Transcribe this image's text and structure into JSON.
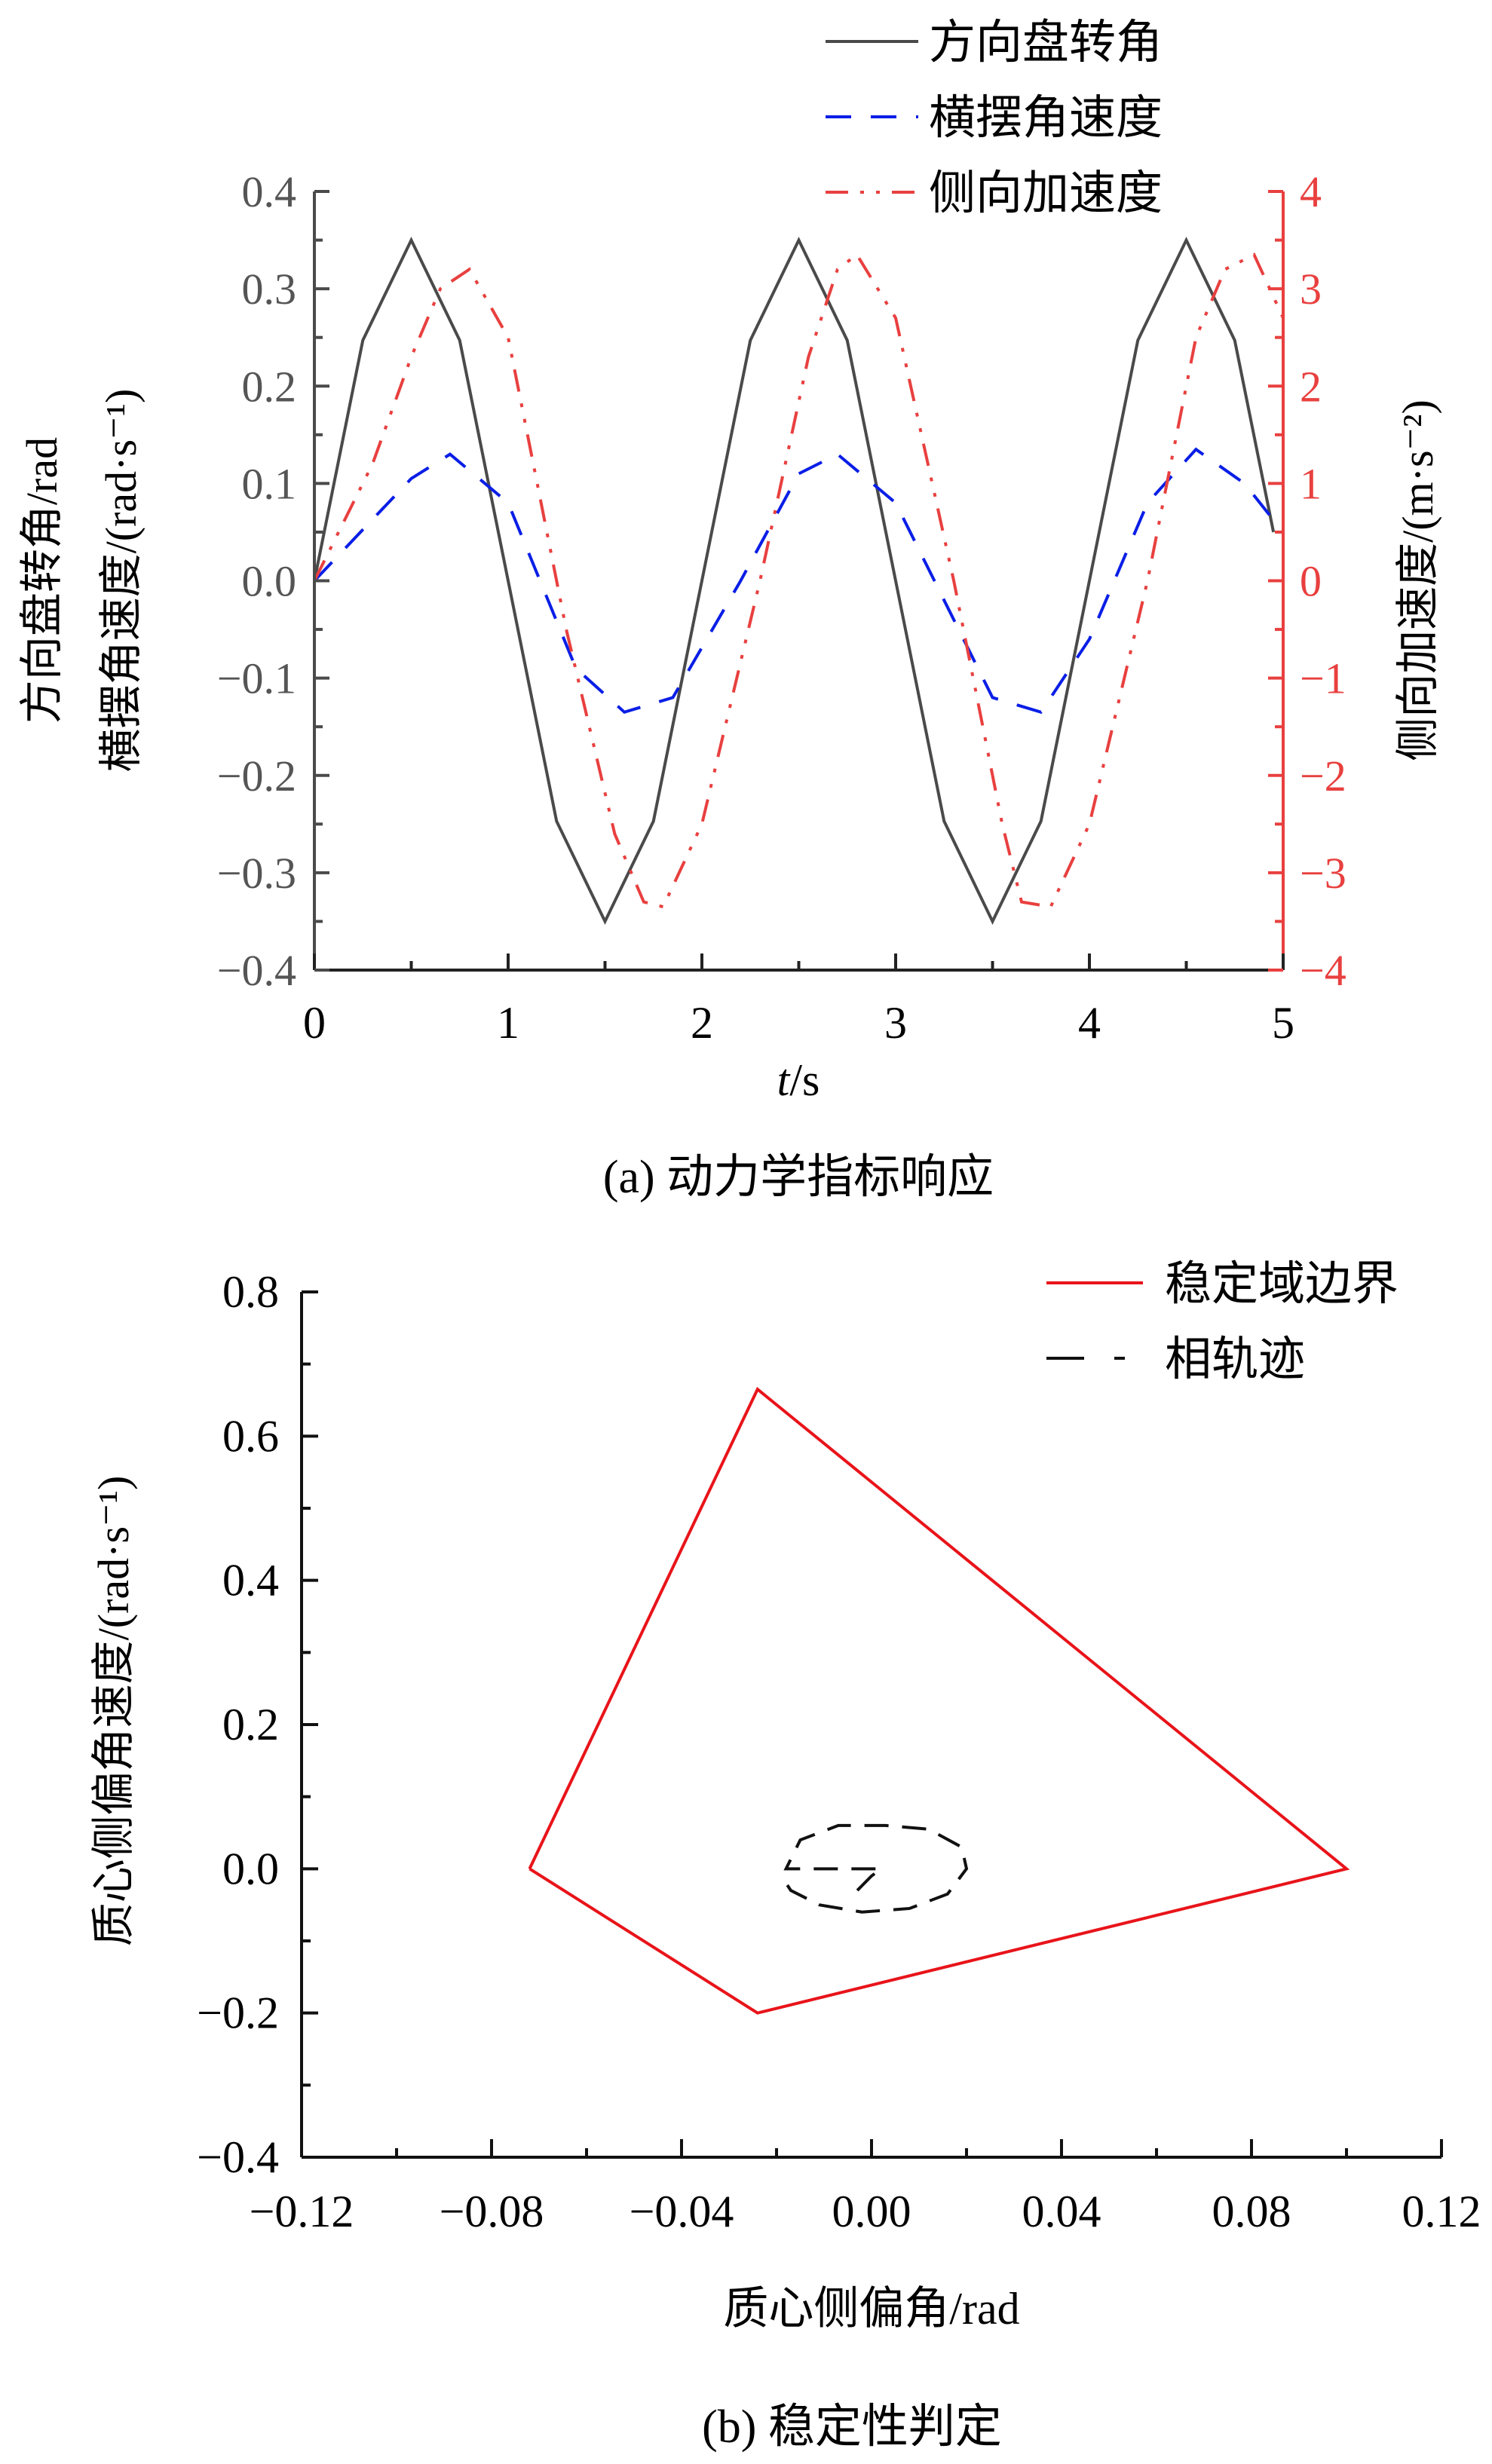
{
  "chart_data": [
    {
      "type": "line",
      "caption": "(a) 动力学指标响应",
      "xlabel_italic": "t",
      "xlabel_unit": "/s",
      "ylabel_left_line1": "方向盘转角/rad",
      "ylabel_left_line2": "横摆角速度/(rad·s⁻¹)",
      "ylabel_right": "侧向加速度/(m·s⁻²)",
      "xlim": [
        0,
        5
      ],
      "ylim_left": [
        -0.4,
        0.4
      ],
      "ylim_right": [
        -4,
        4
      ],
      "xticks": [
        "0",
        "1",
        "2",
        "3",
        "4",
        "5"
      ],
      "yticks_left": [
        "0.4",
        "0.3",
        "0.2",
        "0.1",
        "0.0",
        "−0.1",
        "−0.2",
        "−0.3",
        "−0.4"
      ],
      "yticks_right": [
        "4",
        "3",
        "2",
        "1",
        "0",
        "−1",
        "−2",
        "−3",
        "−4"
      ],
      "grid": false,
      "legend_position": "top-right",
      "colors": {
        "steering": "#4a4a4a",
        "yaw": "#0a1ee6",
        "lateral": "#e8403f"
      },
      "series": [
        {
          "name": "方向盘转角",
          "axis": "left",
          "style": "solid",
          "x": [
            0,
            0.25,
            0.5,
            0.75,
            1.0,
            1.25,
            1.5,
            1.75,
            2.0,
            2.25,
            2.5,
            2.75,
            3.0,
            3.25,
            3.5,
            3.75,
            4.0,
            4.25,
            4.5,
            4.75,
            4.95
          ],
          "y": [
            0,
            0.247,
            0.35,
            0.247,
            0,
            -0.247,
            -0.35,
            -0.247,
            0,
            0.247,
            0.35,
            0.247,
            0,
            -0.247,
            -0.35,
            -0.247,
            0,
            0.247,
            0.35,
            0.247,
            0.05
          ]
        },
        {
          "name": "横摆角速度",
          "axis": "left",
          "style": "dash",
          "x": [
            0,
            0.5,
            0.7,
            1.0,
            1.35,
            1.6,
            1.85,
            2.2,
            2.5,
            2.7,
            3.0,
            3.5,
            3.75,
            4.0,
            4.3,
            4.55,
            4.8,
            5.0
          ],
          "y": [
            0,
            0.105,
            0.13,
            0.08,
            -0.09,
            -0.135,
            -0.12,
            0,
            0.11,
            0.13,
            0.08,
            -0.12,
            -0.135,
            -0.06,
            0.08,
            0.135,
            0.1,
            0.05
          ]
        },
        {
          "name": "侧向加速度",
          "axis": "right",
          "style": "dash-dot-dot",
          "x": [
            0,
            0.3,
            0.5,
            0.65,
            0.8,
            1.0,
            1.3,
            1.55,
            1.7,
            1.8,
            2.0,
            2.3,
            2.55,
            2.7,
            2.8,
            3.0,
            3.3,
            3.55,
            3.65,
            3.8,
            4.0,
            4.3,
            4.55,
            4.7,
            4.85,
            5.0
          ],
          "y": [
            0,
            1.2,
            2.3,
            3.0,
            3.2,
            2.5,
            -0.5,
            -2.6,
            -3.3,
            -3.35,
            -2.5,
            0,
            2.3,
            3.2,
            3.35,
            2.7,
            0,
            -2.5,
            -3.3,
            -3.35,
            -2.5,
            0,
            2.5,
            3.2,
            3.35,
            2.7
          ]
        }
      ]
    },
    {
      "type": "line",
      "caption": "(b) 稳定性判定",
      "xlabel": "质心侧偏角/rad",
      "ylabel": "质心侧偏角速度/(rad·s⁻¹)",
      "xlim": [
        -0.12,
        0.12
      ],
      "ylim": [
        -0.4,
        0.8
      ],
      "xticks": [
        "−0.12",
        "−0.08",
        "−0.04",
        "0.00",
        "0.04",
        "0.08",
        "0.12"
      ],
      "yticks": [
        "0.8",
        "0.6",
        "0.4",
        "0.2",
        "0.0",
        "−0.2",
        "−0.4"
      ],
      "grid": false,
      "legend_position": "top-right",
      "colors": {
        "boundary": "#e8141a",
        "trajectory": "#111111"
      },
      "series": [
        {
          "name": "稳定域边界",
          "style": "solid",
          "x": [
            -0.072,
            -0.024,
            0.1,
            -0.024,
            -0.072
          ],
          "y": [
            0,
            0.665,
            0,
            -0.2,
            0
          ]
        },
        {
          "name": "相轨迹",
          "style": "dash",
          "x": [
            -0.003,
            0.0,
            0.002,
            0.0,
            -0.007,
            -0.014,
            -0.018,
            -0.015,
            -0.007,
            0.003,
            0.012,
            0.019,
            0.02,
            0.016,
            0.008,
            -0.002,
            -0.011,
            -0.017,
            -0.018
          ],
          "y": [
            -0.03,
            -0.01,
            0.0,
            0.0,
            0.0,
            0.0,
            0.0,
            0.04,
            0.06,
            0.06,
            0.055,
            0.03,
            0.0,
            -0.035,
            -0.055,
            -0.06,
            -0.05,
            -0.03,
            -0.02
          ]
        }
      ]
    }
  ]
}
